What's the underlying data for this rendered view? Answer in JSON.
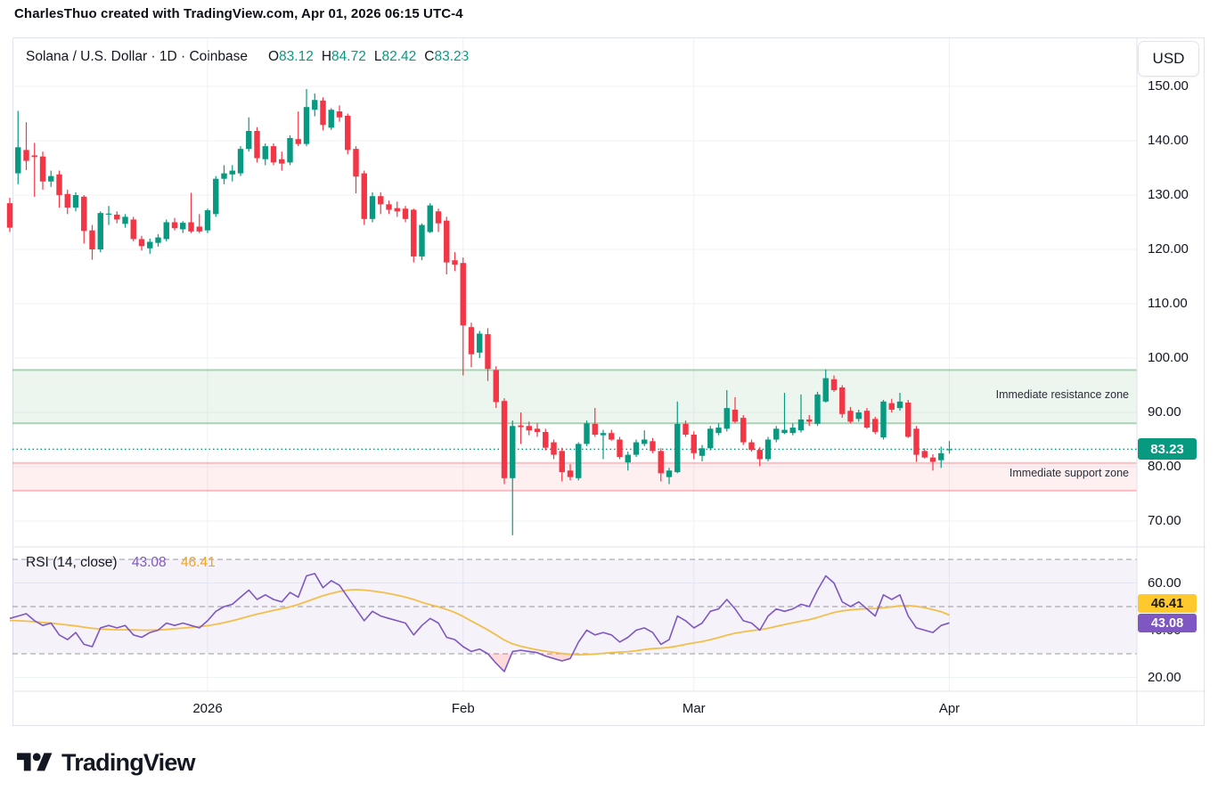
{
  "header": {
    "credit": "CharlesThuo created with TradingView.com, Apr 01, 2026 06:15 UTC-4"
  },
  "legend": {
    "symbol": "Solana / U.S. Dollar · 1D · Coinbase",
    "ohlc": {
      "o_label": "O",
      "o": "83.12",
      "h_label": "H",
      "h": "84.72",
      "l_label": "L",
      "l": "82.42",
      "c_label": "C",
      "c": "83.23"
    }
  },
  "currency_button": {
    "label": "USD"
  },
  "price_axis": {
    "last_price_label": "83.23"
  },
  "rsi_legend": {
    "title": "RSI (14, close)",
    "value": "43.08",
    "ma_value": "46.41"
  },
  "zones": {
    "resistance": {
      "label": "Immediate resistance zone",
      "top_price": 97.8,
      "bottom_price": 88.0
    },
    "support": {
      "label": "Immediate support zone",
      "top_price": 80.7,
      "bottom_price": 75.6
    }
  },
  "logo": {
    "text": "TradingView"
  },
  "colors": {
    "up": "#089981",
    "down": "#F23645",
    "text": "#131722",
    "grid": "#eef1f6",
    "frame": "#e0e3eb",
    "resistance_fill": "rgba(103,183,119,0.12)",
    "resistance_border": "rgba(76,160,100,0.45)",
    "support_fill": "rgba(247,124,128,0.12)",
    "support_border": "rgba(242,54,69,0.30)",
    "rsi_line": "#7E57C2",
    "rsi_ma_line": "#F3BF4B",
    "rsi_band_fill": "rgba(126,87,194,0.08)",
    "rsi_dash": "#787b86",
    "oversold_fill": "rgba(242,54,69,0.18)",
    "price_badge": "#089981",
    "rsi_badge": "#7E57C2",
    "rsi_ma_badge": "#FFC82C"
  },
  "chart_data": {
    "type": "candlestick",
    "title": "Solana / U.S. Dollar · 1D · Coinbase",
    "ohlc_legend": {
      "open": 83.12,
      "high": 84.72,
      "low": 82.42,
      "close": 83.23
    },
    "last_price": 83.23,
    "price_axis_ticks": [
      150,
      140,
      130,
      120,
      110,
      100,
      90,
      80,
      70
    ],
    "time_axis_labels": [
      {
        "text": "2026",
        "candle_index": 24
      },
      {
        "text": "Feb",
        "candle_index": 55
      },
      {
        "text": "Mar",
        "candle_index": 83
      },
      {
        "text": "Apr",
        "candle_index": 114
      }
    ],
    "candles_note": "daily OHLC, Dec 08 2025 - Apr 01 2026, values in USD as [open,high,low,close]",
    "candles": [
      [
        128.5,
        129.5,
        123.2,
        124.0
      ],
      [
        134.0,
        145.5,
        132.0,
        138.8
      ],
      [
        138.3,
        143.4,
        134.6,
        136.3
      ],
      [
        137.3,
        139.6,
        129.7,
        137.0
      ],
      [
        137.1,
        138.0,
        131.0,
        132.5
      ],
      [
        132.5,
        134.5,
        131.5,
        133.5
      ],
      [
        133.8,
        134.5,
        127.7,
        130.0
      ],
      [
        130.2,
        131.0,
        126.5,
        127.7
      ],
      [
        127.7,
        130.5,
        127.0,
        130.0
      ],
      [
        129.7,
        130.0,
        121.1,
        123.4
      ],
      [
        123.5,
        124.5,
        118.1,
        120.0
      ],
      [
        120.0,
        127.0,
        119.5,
        126.7
      ],
      [
        126.4,
        128.0,
        124.5,
        126.6
      ],
      [
        126.4,
        127.0,
        124.8,
        125.5
      ],
      [
        124.7,
        126.5,
        124.0,
        126.0
      ],
      [
        125.5,
        126.0,
        121.5,
        121.9
      ],
      [
        121.9,
        122.5,
        119.8,
        120.6
      ],
      [
        120.2,
        122.0,
        119.2,
        121.4
      ],
      [
        121.2,
        122.8,
        120.5,
        122.2
      ],
      [
        121.9,
        125.5,
        121.5,
        125.0
      ],
      [
        125.0,
        125.8,
        123.5,
        123.9
      ],
      [
        123.7,
        125.2,
        123.0,
        124.9
      ],
      [
        125.0,
        130.4,
        123.0,
        123.3
      ],
      [
        124.2,
        126.5,
        123.0,
        123.3
      ],
      [
        123.5,
        127.5,
        123.0,
        127.2
      ],
      [
        126.5,
        133.5,
        126.0,
        133.0
      ],
      [
        133.0,
        135.5,
        132.0,
        134.0
      ],
      [
        133.8,
        135.5,
        132.5,
        134.5
      ],
      [
        134.0,
        139.0,
        133.5,
        138.5
      ],
      [
        138.5,
        144.3,
        138.0,
        141.8
      ],
      [
        141.8,
        142.5,
        136.0,
        136.8
      ],
      [
        136.6,
        139.5,
        135.5,
        139.0
      ],
      [
        139.0,
        139.5,
        135.5,
        136.0
      ],
      [
        136.6,
        138.0,
        134.5,
        135.8
      ],
      [
        136.0,
        141.0,
        135.5,
        140.5
      ],
      [
        140.3,
        145.4,
        139.0,
        139.4
      ],
      [
        139.4,
        149.5,
        139.0,
        146.2
      ],
      [
        145.7,
        148.7,
        144.5,
        147.5
      ],
      [
        147.4,
        148.0,
        141.9,
        142.9
      ],
      [
        142.4,
        146.0,
        142.0,
        145.7
      ],
      [
        145.4,
        146.5,
        143.5,
        144.3
      ],
      [
        144.6,
        145.0,
        137.5,
        138.3
      ],
      [
        138.5,
        139.0,
        130.3,
        133.4
      ],
      [
        134.0,
        134.5,
        124.5,
        125.6
      ],
      [
        125.6,
        130.5,
        125.0,
        129.8
      ],
      [
        129.8,
        130.5,
        126.5,
        128.3
      ],
      [
        128.3,
        129.0,
        126.5,
        127.3
      ],
      [
        127.6,
        128.8,
        126.0,
        127.0
      ],
      [
        127.5,
        128.0,
        125.0,
        125.6
      ],
      [
        127.3,
        127.5,
        117.6,
        118.7
      ],
      [
        118.7,
        124.8,
        118.0,
        124.5
      ],
      [
        123.2,
        128.5,
        123.0,
        128.1
      ],
      [
        127.0,
        127.5,
        123.2,
        124.8
      ],
      [
        125.3,
        126.0,
        115.4,
        117.6
      ],
      [
        118.0,
        119.5,
        116.0,
        117.2
      ],
      [
        117.5,
        118.5,
        96.8,
        106.0
      ],
      [
        105.7,
        106.5,
        98.3,
        100.7
      ],
      [
        101.0,
        105.0,
        100.0,
        104.5
      ],
      [
        104.4,
        105.5,
        95.8,
        98.0
      ],
      [
        97.8,
        98.5,
        90.8,
        91.9
      ],
      [
        92.1,
        92.6,
        76.8,
        77.9
      ],
      [
        77.9,
        88.5,
        67.4,
        87.5
      ],
      [
        87.6,
        90.0,
        84.2,
        87.3
      ],
      [
        87.5,
        88.3,
        85.8,
        86.7
      ],
      [
        87.0,
        88.0,
        85.5,
        86.4
      ],
      [
        86.4,
        87.0,
        83.0,
        83.5
      ],
      [
        84.5,
        85.0,
        81.4,
        82.2
      ],
      [
        82.9,
        83.5,
        77.3,
        79.0
      ],
      [
        79.3,
        80.5,
        77.5,
        78.1
      ],
      [
        77.9,
        84.5,
        77.5,
        84.2
      ],
      [
        84.2,
        88.5,
        83.8,
        88.0
      ],
      [
        87.9,
        90.8,
        85.5,
        85.9
      ],
      [
        85.8,
        86.8,
        81.4,
        86.2
      ],
      [
        86.2,
        86.8,
        84.8,
        85.0
      ],
      [
        85.0,
        85.5,
        81.4,
        81.8
      ],
      [
        80.8,
        82.8,
        79.3,
        82.2
      ],
      [
        82.2,
        85.0,
        81.8,
        84.5
      ],
      [
        84.2,
        86.7,
        83.8,
        85.0
      ],
      [
        84.7,
        85.3,
        82.5,
        82.9
      ],
      [
        82.9,
        83.4,
        77.3,
        78.8
      ],
      [
        78.1,
        79.8,
        76.8,
        79.3
      ],
      [
        79.0,
        92.0,
        78.8,
        87.9
      ],
      [
        87.9,
        88.5,
        85.5,
        85.9
      ],
      [
        85.9,
        86.5,
        81.4,
        82.5
      ],
      [
        82.0,
        84.0,
        81.0,
        83.4
      ],
      [
        83.4,
        87.5,
        83.0,
        87.0
      ],
      [
        86.2,
        88.0,
        85.8,
        87.2
      ],
      [
        87.0,
        94.1,
        86.5,
        90.8
      ],
      [
        90.5,
        92.8,
        88.0,
        88.3
      ],
      [
        89.0,
        89.5,
        84.0,
        84.5
      ],
      [
        84.5,
        85.0,
        82.8,
        83.1
      ],
      [
        83.1,
        83.6,
        80.1,
        81.4
      ],
      [
        81.4,
        85.5,
        81.0,
        85.0
      ],
      [
        85.0,
        87.5,
        84.5,
        87.0
      ],
      [
        86.2,
        93.6,
        86.0,
        86.8
      ],
      [
        86.2,
        88.0,
        85.8,
        87.2
      ],
      [
        86.7,
        93.3,
        86.3,
        88.7
      ],
      [
        88.7,
        89.5,
        87.5,
        88.3
      ],
      [
        87.9,
        93.8,
        87.5,
        93.3
      ],
      [
        92.0,
        97.9,
        91.8,
        96.3
      ],
      [
        96.1,
        96.8,
        93.8,
        94.1
      ],
      [
        94.6,
        95.0,
        89.0,
        89.7
      ],
      [
        90.3,
        91.0,
        88.0,
        88.3
      ],
      [
        88.8,
        90.5,
        88.3,
        90.0
      ],
      [
        90.3,
        90.8,
        87.0,
        87.2
      ],
      [
        88.8,
        89.2,
        86.0,
        86.4
      ],
      [
        85.4,
        92.3,
        85.0,
        92.0
      ],
      [
        91.7,
        92.5,
        90.0,
        90.5
      ],
      [
        90.8,
        93.6,
        90.3,
        92.0
      ],
      [
        91.8,
        92.3,
        85.3,
        85.5
      ],
      [
        87.0,
        87.5,
        80.9,
        82.2
      ],
      [
        82.9,
        83.4,
        81.5,
        81.7
      ],
      [
        81.7,
        82.3,
        79.3,
        80.9
      ],
      [
        81.2,
        83.7,
        79.8,
        82.5
      ],
      [
        83.12,
        84.72,
        82.42,
        83.23
      ]
    ],
    "rsi_pane": {
      "title": "RSI (14, close)",
      "bands": [
        70,
        50,
        30
      ],
      "axis_ticks": [
        60,
        40,
        20
      ],
      "rsi_last": 43.08,
      "ma_last": 46.41,
      "rsi": [
        45,
        46,
        47,
        44,
        42,
        43,
        38,
        36,
        39,
        34,
        33,
        41,
        42,
        41,
        42,
        38,
        37,
        39,
        40,
        43,
        42,
        43,
        42,
        41,
        44,
        48,
        50,
        51,
        54,
        57,
        53,
        55,
        53,
        52,
        56,
        54,
        63,
        64,
        58,
        61,
        59,
        54,
        49,
        44,
        48,
        46,
        45,
        44,
        43,
        38,
        42,
        45,
        43,
        37,
        36,
        33,
        31,
        32,
        30,
        26,
        22.5,
        31,
        31.5,
        31,
        30.5,
        29,
        28,
        27,
        28,
        35,
        40,
        38,
        39,
        38,
        35,
        37,
        40,
        41,
        39,
        34,
        36,
        46,
        44,
        41,
        43,
        48,
        49,
        53,
        49,
        44,
        43,
        40,
        46,
        49,
        48,
        49,
        51,
        50,
        57,
        63,
        60,
        52,
        50,
        52,
        49,
        46,
        55,
        53,
        55,
        46,
        41,
        40,
        39,
        42,
        43.08
      ],
      "ma": [
        44.1,
        44.0,
        43.8,
        43.6,
        43.3,
        43.0,
        42.6,
        42.2,
        41.8,
        41.3,
        40.8,
        40.5,
        40.3,
        40.2,
        40.2,
        40.1,
        40.0,
        40.0,
        40.1,
        40.3,
        40.6,
        40.9,
        41.2,
        41.5,
        41.9,
        42.5,
        43.2,
        44.0,
        44.9,
        45.9,
        46.8,
        47.6,
        48.4,
        49.1,
        49.9,
        50.9,
        52.1,
        53.4,
        54.6,
        55.6,
        56.4,
        57.0,
        57.2,
        57.0,
        56.6,
        56.1,
        55.5,
        54.8,
        54.0,
        53.0,
        51.8,
        50.8,
        49.9,
        48.8,
        47.5,
        45.8,
        43.9,
        42.0,
        40.1,
        38.0,
        35.8,
        34.2,
        33.2,
        32.4,
        31.7,
        31.1,
        30.6,
        30.1,
        29.8,
        29.6,
        29.7,
        29.9,
        30.2,
        30.5,
        30.7,
        30.9,
        31.3,
        31.8,
        32.2,
        32.4,
        32.7,
        33.3,
        34.0,
        34.6,
        35.2,
        36.0,
        36.9,
        37.9,
        38.7,
        39.3,
        39.8,
        40.2,
        40.8,
        41.6,
        42.4,
        43.1,
        43.8,
        44.5,
        45.4,
        46.5,
        47.5,
        48.2,
        48.6,
        48.9,
        49.1,
        49.2,
        49.5,
        49.9,
        50.3,
        50.4,
        50.1,
        49.5,
        48.7,
        47.8,
        46.41
      ]
    }
  }
}
